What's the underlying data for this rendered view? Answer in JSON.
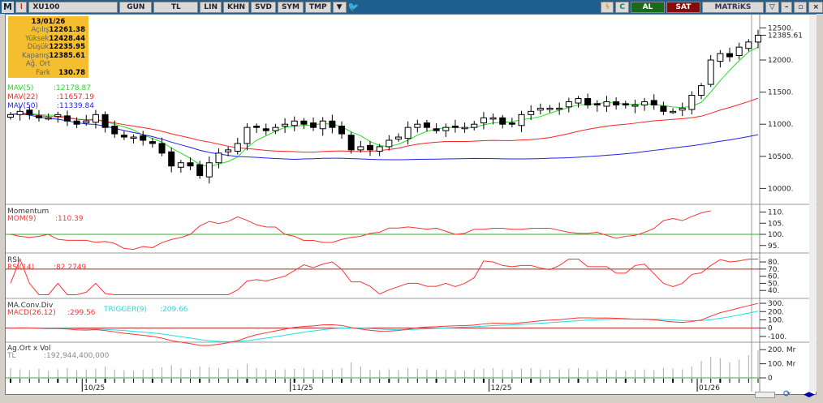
{
  "toolbar": {
    "m": "M",
    "symbol": "XU100",
    "period": "GUN",
    "currency": "TL",
    "buttons": [
      "LIN",
      "KHN",
      "SVD",
      "SYM",
      "TMP"
    ],
    "buy": "AL",
    "sell": "SAT",
    "brand": "MATRiKS"
  },
  "info": {
    "date": "13/01/26",
    "rows": [
      {
        "k": "Açılış",
        "v": "12261.38"
      },
      {
        "k": "Yüksek",
        "v": "12428.44"
      },
      {
        "k": "Düşük",
        "v": "12235.95"
      },
      {
        "k": "Kapanış",
        "v": "12385.61"
      },
      {
        "k": "Ağ. Ort",
        "v": ""
      },
      {
        "k": "Fark",
        "v": "130.78"
      }
    ]
  },
  "mav": [
    {
      "label": "MAV(5)",
      "value": ":12178.87",
      "color": "#22dd22"
    },
    {
      "label": "MAV(22)",
      "value": ":11657.19",
      "color": "#ff2222"
    },
    {
      "label": "MAV(50)",
      "value": ":11339.84",
      "color": "#2222ee"
    }
  ],
  "momentum": {
    "title": "Momentum",
    "label": "MOM(9)",
    "value": ":110.39"
  },
  "rsi": {
    "title": "RSI",
    "label": "RSI(14)",
    "value": ":82.2749"
  },
  "macd": {
    "title": "MA.Conv.Div",
    "label": "MACD(26.12)",
    "value": ":299.56",
    "trigger_label": "TRIGGER(9)",
    "trigger_value": ":209.66"
  },
  "volume": {
    "title": "Ag.Ort x Vol",
    "label": "TL",
    "value": ":192,944,400,000"
  },
  "axes": {
    "price": [
      "12500.",
      "12000.",
      "11500.",
      "11000.",
      "10500.",
      "10000."
    ],
    "last": "12385.61",
    "mom": [
      "110.",
      "105.",
      "100.",
      "95."
    ],
    "rsi": [
      "80.",
      "70.",
      "60.",
      "50.",
      "40."
    ],
    "macd": [
      "300.",
      "200.",
      "100.",
      "0",
      "-100."
    ],
    "vol": [
      "200. Mr",
      "100. Mr",
      "0"
    ],
    "dates": [
      "10/25",
      "11/25",
      "12/25",
      "01/26"
    ]
  },
  "chart_data": {
    "type": "candlestick",
    "closes": [
      11150,
      11200,
      11150,
      11100,
      11100,
      11150,
      11050,
      11000,
      11050,
      11150,
      10950,
      10850,
      10800,
      10800,
      10750,
      10700,
      10550,
      10350,
      10400,
      10350,
      10200,
      10400,
      10550,
      10600,
      10700,
      10950,
      10950,
      10900,
      10950,
      11000,
      11050,
      11000,
      10950,
      11050,
      10950,
      10850,
      10600,
      10650,
      10600,
      10650,
      10750,
      10800,
      10950,
      11000,
      10950,
      10900,
      10950,
      10950,
      10950,
      11000,
      11100,
      11100,
      11000,
      11000,
      11150,
      11200,
      11250,
      11250,
      11250,
      11350,
      11400,
      11300,
      11300,
      11350,
      11300,
      11300,
      11300,
      11350,
      11300,
      11200,
      11200,
      11250,
      11450,
      11600,
      12000,
      12100,
      12050,
      12200,
      12280,
      12385.61
    ],
    "volumes_mr": [
      70,
      60,
      55,
      65,
      50,
      60,
      70,
      55,
      60,
      65,
      80,
      60,
      55,
      50,
      60,
      65,
      75,
      90,
      70,
      60,
      80,
      75,
      70,
      65,
      60,
      100,
      70,
      60,
      55,
      60,
      65,
      70,
      60,
      55,
      60,
      70,
      110,
      80,
      60,
      55,
      60,
      55,
      70,
      65,
      60,
      55,
      60,
      55,
      50,
      60,
      65,
      70,
      60,
      55,
      65,
      70,
      60,
      55,
      60,
      65,
      70,
      55,
      50,
      60,
      55,
      50,
      55,
      60,
      55,
      70,
      65,
      60,
      80,
      120,
      150,
      140,
      110,
      130,
      160,
      193
    ],
    "date_ticks": [
      "10/25",
      "11/25",
      "12/25",
      "01/26"
    ]
  }
}
